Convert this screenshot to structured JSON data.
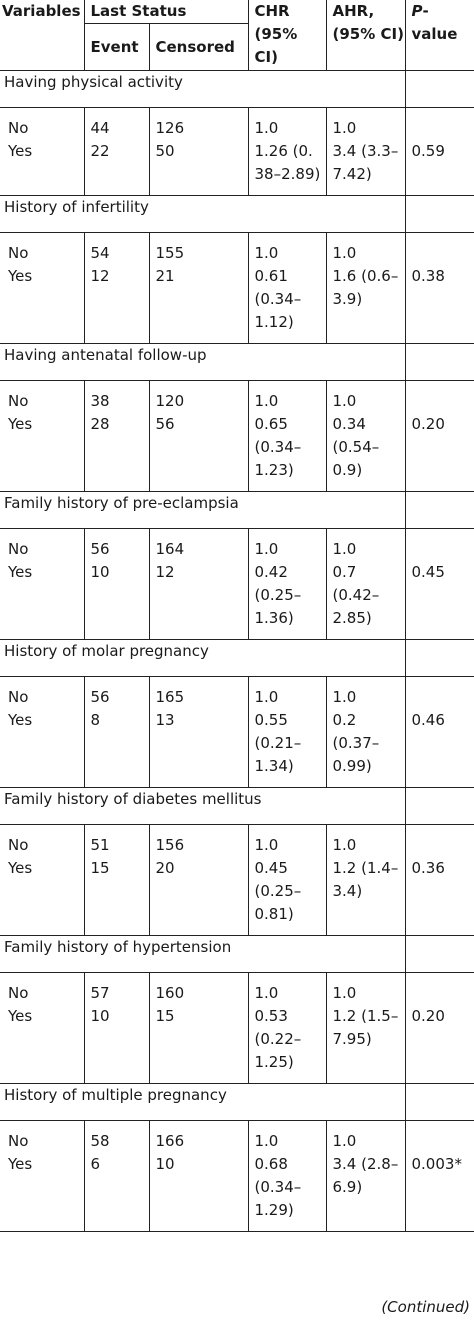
{
  "header": {
    "variables": "Variables",
    "last_status": "Last Status",
    "event": "Event",
    "censored": "Censored",
    "chr": "CHR (95% CI)",
    "ahr": "AHR, (95% CI)",
    "p_value_italic": "P",
    "p_value_rest": "-value"
  },
  "groups": [
    {
      "title": "Having physical activity",
      "rows": [
        {
          "label": "No",
          "event": "44",
          "censored": "126",
          "chr": "1.0",
          "ahr": "1.0",
          "p": ""
        },
        {
          "label": "Yes",
          "event": "22",
          "censored": "50",
          "chr": "1.26 (0. 38–2.89)",
          "ahr": "3.4 (3.3–7.42)",
          "p": "0.59"
        }
      ]
    },
    {
      "title": "History of infertility",
      "rows": [
        {
          "label": "No",
          "event": "54",
          "censored": "155",
          "chr": "1.0",
          "ahr": "1.0",
          "p": ""
        },
        {
          "label": "Yes",
          "event": "12",
          "censored": "21",
          "chr": "0.61 (0.34–1.12)",
          "ahr": "1.6 (0.6–3.9)",
          "p": "0.38"
        }
      ]
    },
    {
      "title": "Having antenatal follow-up",
      "rows": [
        {
          "label": "No",
          "event": "38",
          "censored": "120",
          "chr": "1.0",
          "ahr": "1.0",
          "p": ""
        },
        {
          "label": "Yes",
          "event": "28",
          "censored": "56",
          "chr": "0.65 (0.34–1.23)",
          "ahr": "0.34 (0.54–0.9)",
          "p": "0.20"
        }
      ]
    },
    {
      "title": "Family history of pre-eclampsia",
      "rows": [
        {
          "label": "No",
          "event": "56",
          "censored": "164",
          "chr": "1.0",
          "ahr": "1.0",
          "p": ""
        },
        {
          "label": "Yes",
          "event": "10",
          "censored": "12",
          "chr": "0.42 (0.25–1.36)",
          "ahr": "0.7 (0.42–2.85)",
          "p": "0.45"
        }
      ]
    },
    {
      "title": "History of molar pregnancy",
      "rows": [
        {
          "label": "No",
          "event": "56",
          "censored": "165",
          "chr": "1.0",
          "ahr": "1.0",
          "p": ""
        },
        {
          "label": "Yes",
          "event": "8",
          "censored": "13",
          "chr": "0.55 (0.21–1.34)",
          "ahr": "0.2 (0.37–0.99)",
          "p": "0.46"
        }
      ]
    },
    {
      "title": "Family history of diabetes mellitus",
      "rows": [
        {
          "label": "No",
          "event": "51",
          "censored": "156",
          "chr": "1.0",
          "ahr": "1.0",
          "p": ""
        },
        {
          "label": "Yes",
          "event": "15",
          "censored": "20",
          "chr": "0.45 (0.25–0.81)",
          "ahr": "1.2 (1.4–3.4)",
          "p": "0.36"
        }
      ]
    },
    {
      "title": "Family history of hypertension",
      "rows": [
        {
          "label": "No",
          "event": "57",
          "censored": "160",
          "chr": "1.0",
          "ahr": "1.0",
          "p": ""
        },
        {
          "label": "Yes",
          "event": "10",
          "censored": "15",
          "chr": "0.53 (0.22–1.25)",
          "ahr": "1.2 (1.5–7.95)",
          "p": "0.20"
        }
      ]
    },
    {
      "title": "History of multiple pregnancy",
      "rows": [
        {
          "label": "No",
          "event": "58",
          "censored": "166",
          "chr": "1.0",
          "ahr": "1.0",
          "p": ""
        },
        {
          "label": "Yes",
          "event": "6",
          "censored": "10",
          "chr": "0.68 (0.34–1.29)",
          "ahr": "3.4 (2.8–6.9)",
          "p": "0.003*"
        }
      ]
    }
  ],
  "footer": {
    "continued": "(Continued)"
  }
}
